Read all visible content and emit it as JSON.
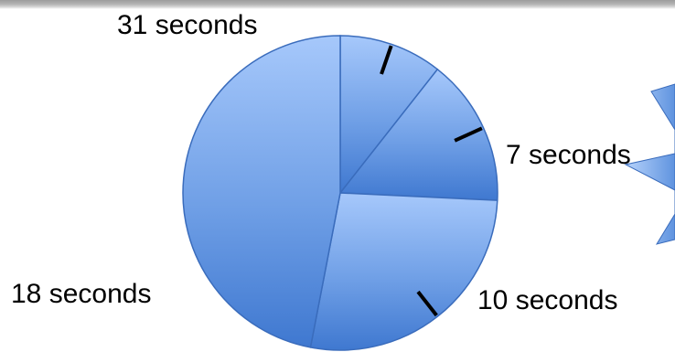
{
  "colors": {
    "slice_light": "#a6c8fb",
    "slice_mid": "#6f9fe6",
    "slice_dark": "#3f78d0",
    "slice_edge": "#3a6cbc",
    "leader_line": "#000000",
    "arrow_light": "#b7d3fb",
    "arrow_dark": "#5f93df"
  },
  "chart_data": {
    "type": "pie",
    "unit": "seconds",
    "slices": [
      {
        "value": 7,
        "label": "7 seconds"
      },
      {
        "value": 10,
        "label": "10 seconds"
      },
      {
        "value": 18,
        "label": "18 seconds"
      },
      {
        "value": 31,
        "label": "31 seconds"
      }
    ],
    "legend": "none"
  }
}
